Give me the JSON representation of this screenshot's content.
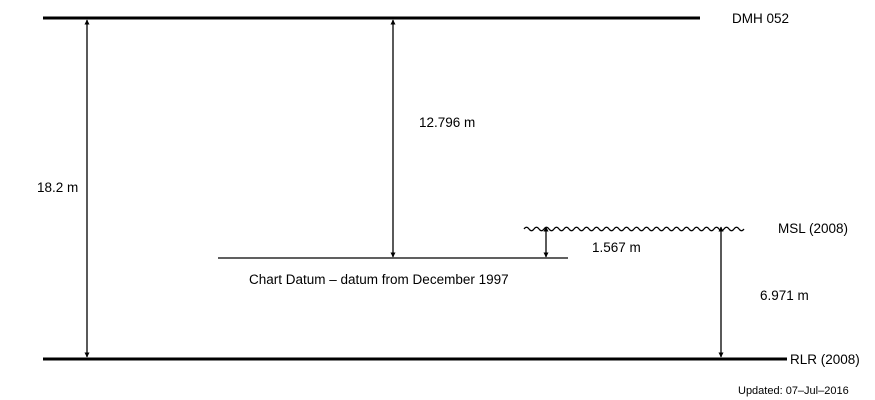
{
  "labels": {
    "dmh": "DMH 052",
    "msl": "MSL (2008)",
    "rlr": "RLR (2008)",
    "chart_datum": "Chart Datum – datum from December 1997",
    "updated": "Updated: 07–Jul–2016"
  },
  "measurements": {
    "dmh_to_rlr": "18.2 m",
    "dmh_to_chart_datum": "12.796 m",
    "chart_datum_to_msl": "1.567 m",
    "msl_to_rlr": "6.971 m"
  },
  "colors": {
    "line": "#000000",
    "background": "#ffffff"
  }
}
